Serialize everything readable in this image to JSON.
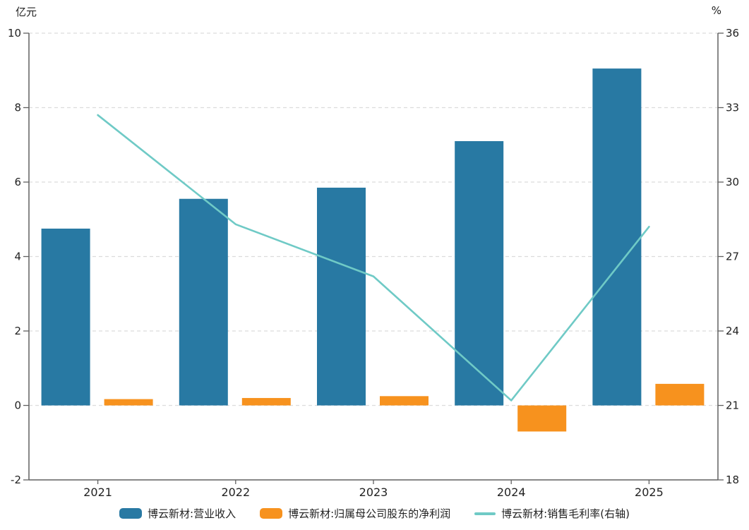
{
  "chart_data": {
    "type": "bar",
    "subtype": "bar+line combo, dual y-axis",
    "categories": [
      "2021",
      "2022",
      "2023",
      "2024",
      "2025"
    ],
    "left_axis": {
      "label": "亿元",
      "min": -2,
      "max": 10,
      "ticks": [
        10,
        8,
        6,
        4,
        2,
        0,
        -2
      ]
    },
    "right_axis": {
      "label": "%",
      "min": 18,
      "max": 36,
      "ticks": [
        36,
        33,
        30,
        27,
        24,
        21,
        18
      ]
    },
    "series": [
      {
        "key": "revenue",
        "name": "博云新材:营业收入",
        "type": "bar",
        "axis": "left",
        "color": "#2879A3",
        "values": [
          4.75,
          5.55,
          5.85,
          7.1,
          9.05
        ]
      },
      {
        "key": "net-profit",
        "name": "博云新材:归属母公司股东的净利润",
        "type": "bar",
        "axis": "left",
        "color": "#F7921E",
        "values": [
          0.17,
          0.2,
          0.25,
          -0.7,
          0.58
        ]
      },
      {
        "key": "gross-margin",
        "name": "博云新材:销售毛利率(右轴)",
        "type": "line",
        "axis": "right",
        "color": "#6FCAC6",
        "values": [
          32.7,
          28.3,
          26.2,
          21.2,
          28.2
        ]
      }
    ],
    "grid": true,
    "gridline_style": "dashed",
    "legend_position": "bottom"
  },
  "colors": {
    "background": "#FFFFFF",
    "axis_line": "#606060",
    "grid_line": "#DCDCDC",
    "text": "#222222"
  }
}
